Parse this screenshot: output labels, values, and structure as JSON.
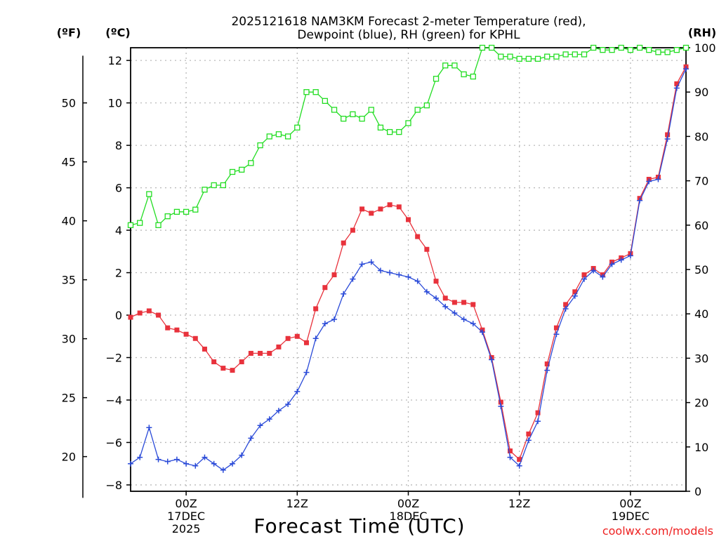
{
  "chart_data": {
    "type": "line",
    "title_line1": "2025121618 NAM3KM Forecast 2-meter Temperature (red),",
    "title_line2": "Dewpoint (blue), RH (green) for KPHL",
    "left_unit_f": "(ºF)",
    "left_unit_c": "(ºC)",
    "right_unit": "(RH)",
    "xlabel": "Forecast Time (UTC)",
    "credit": "coolwx.com/models",
    "x_unit": "forecast hour (h)",
    "x_range": [
      0,
      60
    ],
    "y_celsius_range": [
      -8.3,
      12.6
    ],
    "y_rh_range": [
      0,
      100
    ],
    "y_celsius_ticks": [
      12,
      10,
      8,
      6,
      4,
      2,
      0,
      -2,
      -4,
      -6,
      -8
    ],
    "y_celsius_tick_labels": [
      "12",
      "10",
      "8",
      "6",
      "4",
      "2",
      "0",
      "−2",
      "−4",
      "−6",
      "−8"
    ],
    "y_fahrenheit_ticks": [
      "50",
      "45",
      "40",
      "35",
      "30",
      "25",
      "20"
    ],
    "y_rh_ticks": [
      "100",
      "90",
      "80",
      "70",
      "60",
      "50",
      "40",
      "30",
      "20",
      "10",
      "0"
    ],
    "x_tick_hours": [
      6,
      18,
      30,
      42,
      54
    ],
    "x_ticks": [
      {
        "line1": "00Z",
        "line2": "17DEC",
        "line3": "2025"
      },
      {
        "line1": "12Z",
        "line2": "",
        "line3": ""
      },
      {
        "line1": "00Z",
        "line2": "18DEC",
        "line3": ""
      },
      {
        "line1": "12Z",
        "line2": "",
        "line3": ""
      },
      {
        "line1": "00Z",
        "line2": "19DEC",
        "line3": ""
      }
    ],
    "series": [
      {
        "name": "2-meter Temperature (°C)",
        "color": "#e8323c",
        "marker": "filled-square",
        "axis": "celsius",
        "values": [
          -0.1,
          0.1,
          0.2,
          0.0,
          -0.6,
          -0.7,
          -0.9,
          -1.1,
          -1.6,
          -2.2,
          -2.5,
          -2.6,
          -2.2,
          -1.8,
          -1.8,
          -1.8,
          -1.5,
          -1.1,
          -1.0,
          -1.3,
          0.3,
          1.3,
          1.9,
          3.4,
          4.0,
          5.0,
          4.8,
          5.0,
          5.2,
          5.1,
          4.5,
          3.7,
          3.1,
          1.6,
          0.8,
          0.6,
          0.6,
          0.5,
          -0.7,
          -2.0,
          -4.1,
          -6.4,
          -6.8,
          -5.6,
          -4.6,
          -2.3,
          -0.6,
          0.5,
          1.1,
          1.9,
          2.2,
          1.9,
          2.5,
          2.7,
          2.9,
          5.5,
          6.4,
          6.5,
          8.5,
          10.9,
          11.7
        ]
      },
      {
        "name": "Dewpoint (°C)",
        "color": "#2a4ad8",
        "marker": "plus",
        "axis": "celsius",
        "values": [
          -7.0,
          -6.7,
          -5.3,
          -6.8,
          -6.9,
          -6.8,
          -7.0,
          -7.1,
          -6.7,
          -7.0,
          -7.3,
          -7.0,
          -6.6,
          -5.8,
          -5.2,
          -4.9,
          -4.5,
          -4.2,
          -3.6,
          -2.7,
          -1.1,
          -0.4,
          -0.2,
          1.0,
          1.7,
          2.4,
          2.5,
          2.1,
          2.0,
          1.9,
          1.8,
          1.6,
          1.1,
          0.8,
          0.4,
          0.1,
          -0.2,
          -0.4,
          -0.8,
          -2.1,
          -4.3,
          -6.7,
          -7.1,
          -5.9,
          -5.0,
          -2.6,
          -0.9,
          0.3,
          0.9,
          1.7,
          2.1,
          1.8,
          2.4,
          2.6,
          2.8,
          5.4,
          6.3,
          6.4,
          8.3,
          10.7,
          11.6
        ]
      },
      {
        "name": "Relative Humidity (%)",
        "color": "#22dd22",
        "marker": "open-square",
        "axis": "rh",
        "values": [
          60,
          60.5,
          67,
          60,
          62,
          63,
          63,
          63.5,
          68,
          69,
          69,
          72,
          72.5,
          74,
          78,
          80,
          80.5,
          80,
          82,
          90,
          90,
          88,
          86,
          84,
          85,
          84,
          86,
          82,
          81,
          81,
          83,
          86,
          87,
          93,
          96,
          96,
          94,
          93.5,
          100,
          100,
          98,
          98,
          97.5,
          97.5,
          97.5,
          98,
          98,
          98.5,
          98.5,
          98.5,
          100,
          99.5,
          99.5,
          100,
          99.5,
          100,
          99.5,
          99,
          99,
          99.5,
          100
        ]
      }
    ]
  }
}
